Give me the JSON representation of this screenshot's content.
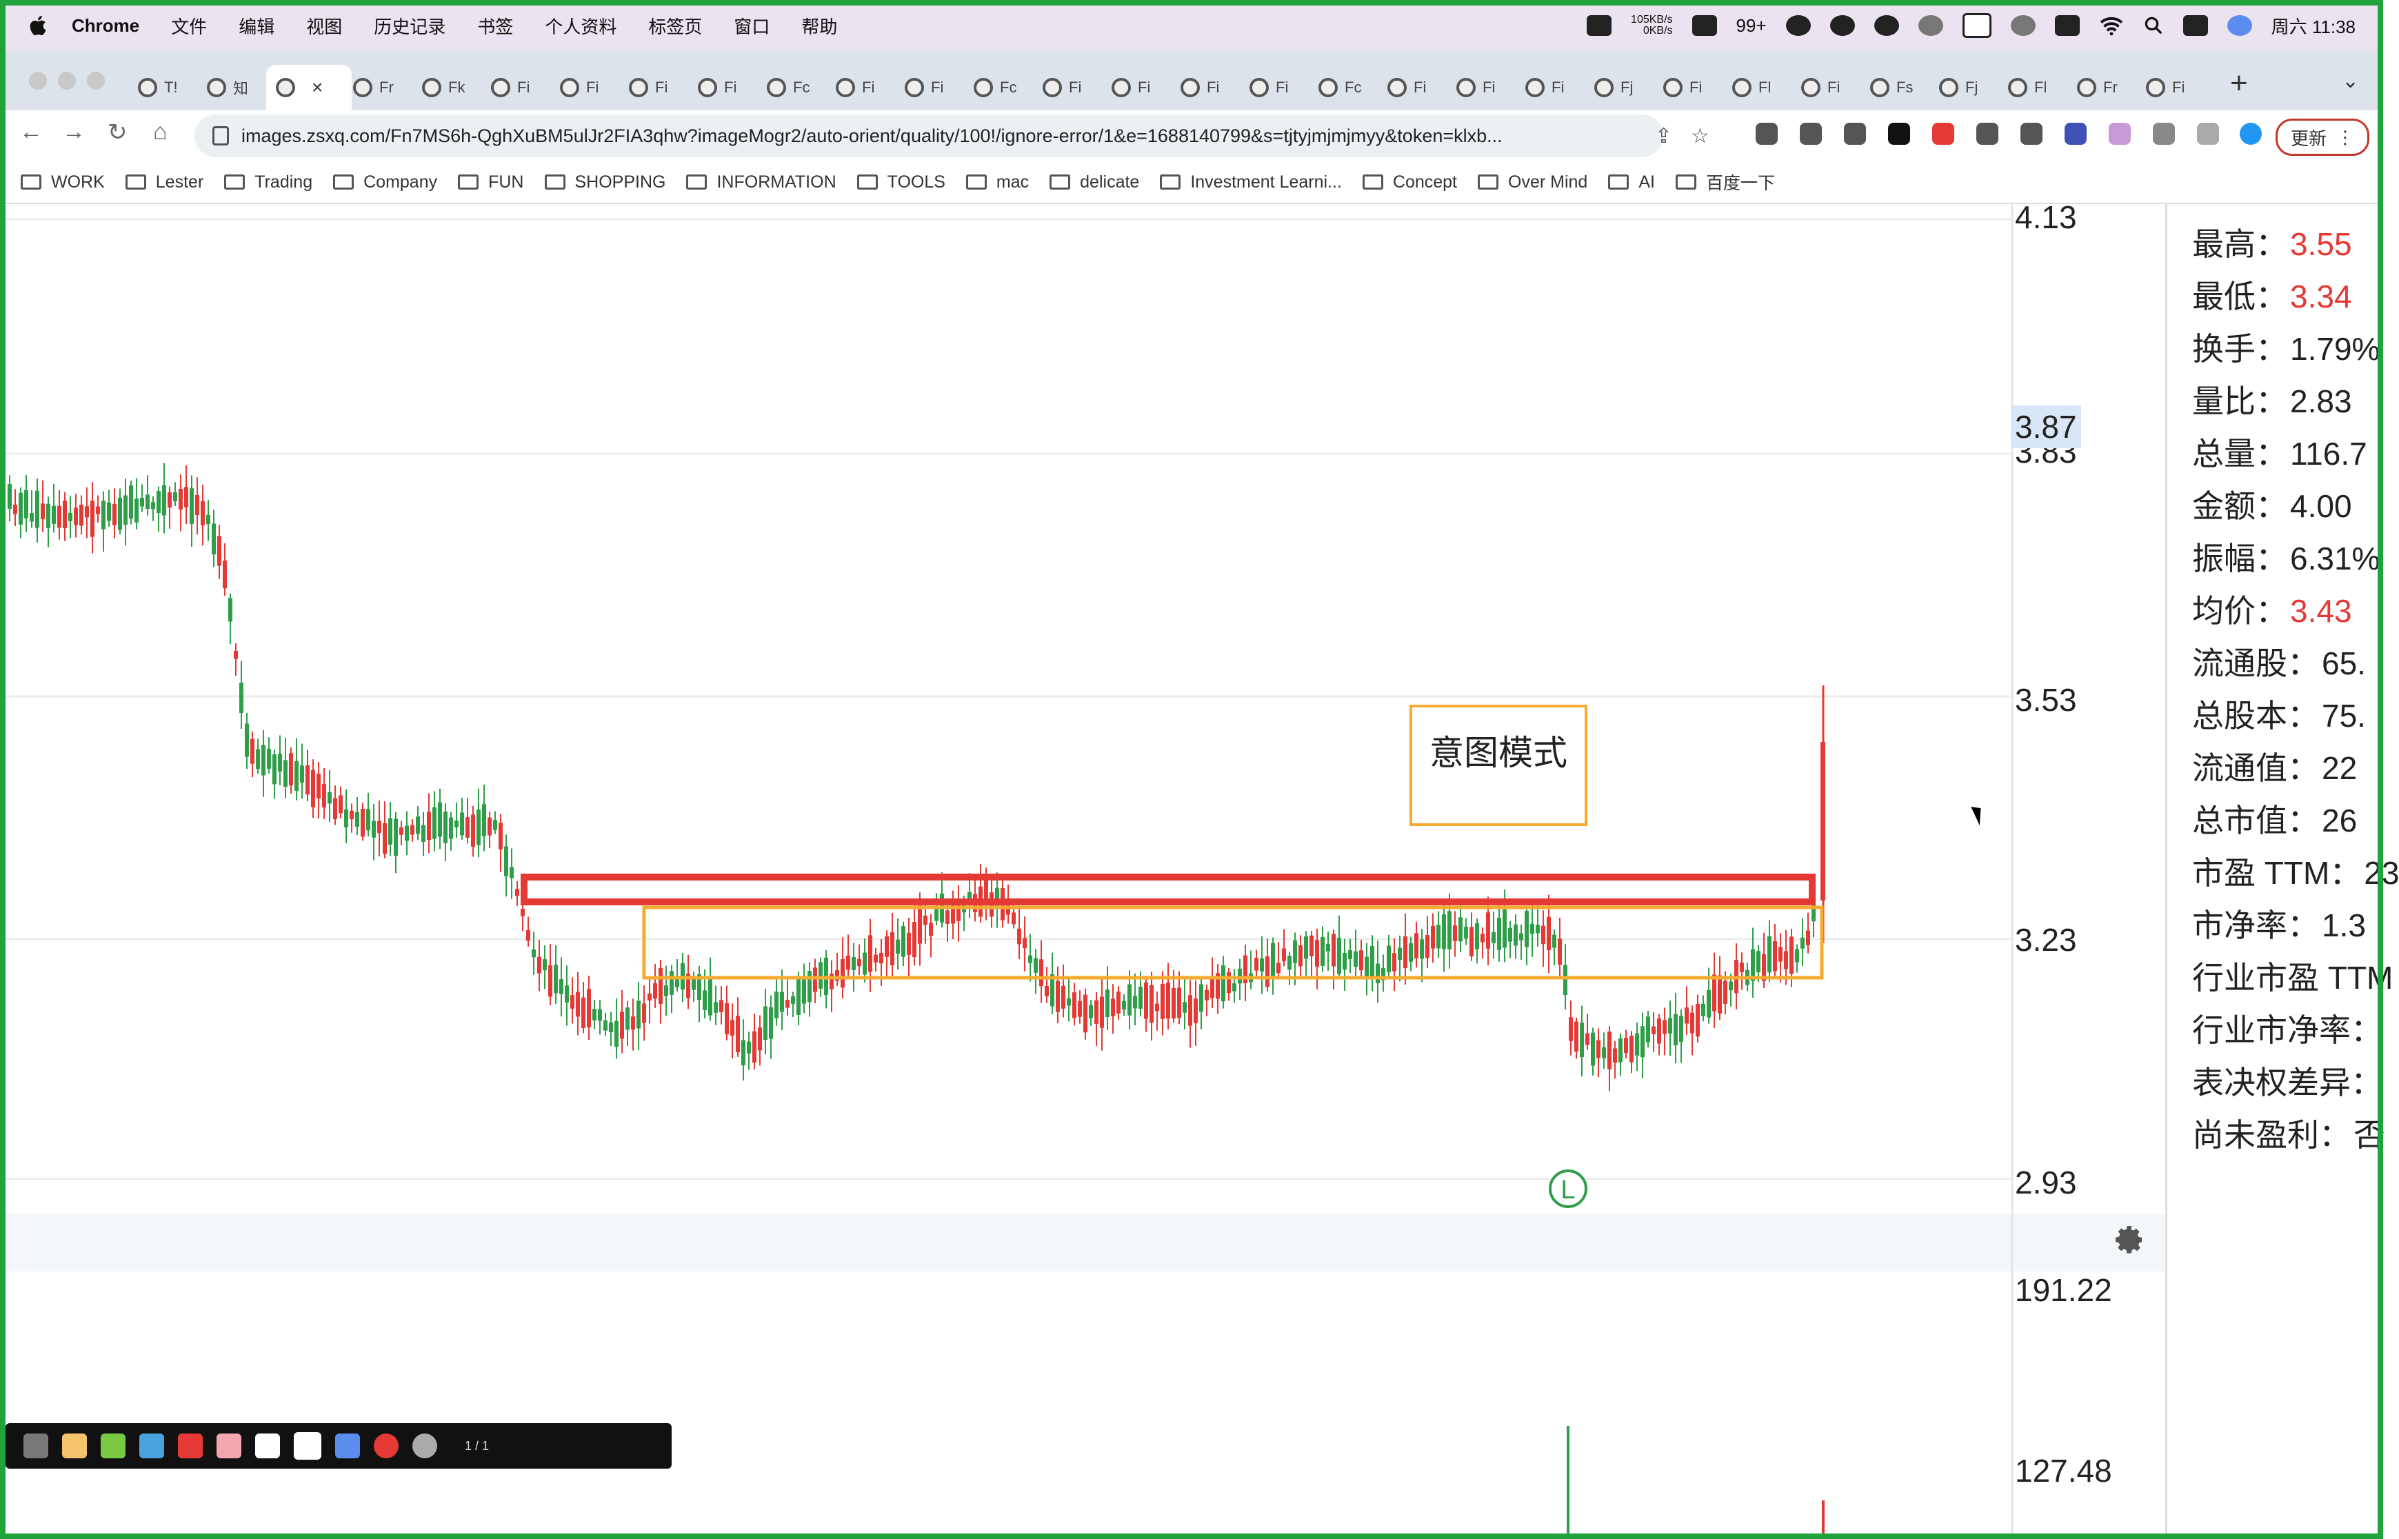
{
  "menubar": {
    "app": "Chrome",
    "items": [
      "文件",
      "编辑",
      "视图",
      "历史记录",
      "书签",
      "个人资料",
      "标签页",
      "窗口",
      "帮助"
    ],
    "net_up": "105KB/s",
    "net_down": "0KB/s",
    "notif": "99+",
    "clock": "周六 11:38"
  },
  "tabs": {
    "labels": [
      "T!",
      "知",
      "",
      "Fr",
      "Fk",
      "Fi",
      "Fi",
      "Fi",
      "Fi",
      "Fc",
      "Fi",
      "Fi",
      "Fc",
      "Fi",
      "Fi",
      "Fi",
      "Fi",
      "Fc",
      "Fi",
      "Fi",
      "Fi",
      "Fj",
      "Fi",
      "Fl",
      "Fi",
      "Fs",
      "Fj",
      "Fl",
      "Fr",
      "Fi"
    ]
  },
  "address": {
    "url": "images.zsxq.com/Fn7MS6h-QghXuBM5ulJr2FIA3qhw?imageMogr2/auto-orient/quality/100!/ignore-error/1&e=1688140799&s=tjtyjmjmjmyy&token=klxb..."
  },
  "toolbar": {
    "update_label": "更新"
  },
  "bookmarks": [
    "WORK",
    "Lester",
    "Trading",
    "Company",
    "FUN",
    "SHOPPING",
    "INFORMATION",
    "TOOLS",
    "mac",
    "delicate",
    "Investment Learni...",
    "Concept",
    "Over Mind",
    "AI",
    "百度一下"
  ],
  "chart": {
    "price_labels": [
      "4.13",
      "3.87",
      "3.83",
      "3.53",
      "3.23",
      "2.93"
    ],
    "volume_labels": [
      "191.22",
      "127.48"
    ],
    "annotation": "意图模式",
    "marker": "L",
    "colors": {
      "up": "#e53935",
      "down": "#2e9e49",
      "red_box": "#e53935",
      "orange_box": "#f6ab2f",
      "crosshair": "#d8e6f7"
    }
  },
  "info": {
    "rows": [
      {
        "label": "最高：",
        "value": "3.55",
        "red": true
      },
      {
        "label": "最低：",
        "value": "3.34",
        "red": true
      },
      {
        "label": "换手：",
        "value": "1.79%",
        "red": false
      },
      {
        "label": "量比：",
        "value": "2.83",
        "red": false
      },
      {
        "label": "总量：",
        "value": "116.7",
        "red": false
      },
      {
        "label": "金额：",
        "value": "4.00",
        "red": false
      },
      {
        "label": "振幅：",
        "value": "6.31%",
        "red": false
      },
      {
        "label": "均价：",
        "value": "3.43",
        "red": true
      },
      {
        "label": "流通股：",
        "value": "65.",
        "red": false
      },
      {
        "label": "总股本：",
        "value": "75.",
        "red": false
      },
      {
        "label": "流通值：",
        "value": "22",
        "red": false
      },
      {
        "label": "总市值：",
        "value": "26",
        "red": false
      },
      {
        "label": "市盈 TTM：",
        "value": "23",
        "red": false
      },
      {
        "label": "市净率：",
        "value": "1.3",
        "red": false
      },
      {
        "label": "行业市盈 TTM",
        "value": "",
        "red": false
      },
      {
        "label": "行业市净率：",
        "value": "",
        "red": false
      },
      {
        "label": "表决权差异：",
        "value": "",
        "red": false
      },
      {
        "label": "尚未盈利：",
        "value": "否",
        "red": false
      }
    ]
  },
  "annotator": {
    "page": "1 / 1"
  }
}
